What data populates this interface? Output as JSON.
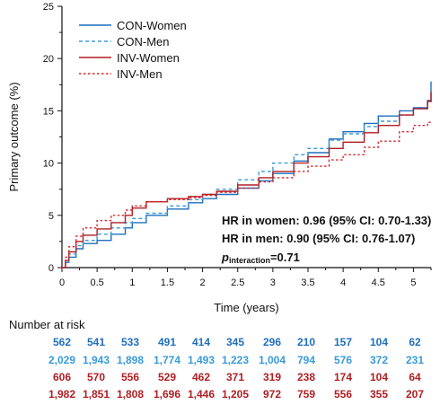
{
  "chart_data": {
    "type": "line",
    "title": "",
    "xlabel": "Time (years)",
    "ylabel": "Primary outcome (%)",
    "xlim": [
      0,
      5.25
    ],
    "ylim": [
      0,
      25
    ],
    "x_ticks": [
      0,
      0.5,
      1,
      1.5,
      2,
      2.5,
      3,
      3.5,
      4,
      4.5,
      5
    ],
    "x_tick_labels": [
      "0",
      "0.5",
      "1",
      "1.5",
      "2",
      "2.5",
      "3",
      "3.5",
      "4",
      "4.5",
      "5"
    ],
    "y_ticks": [
      0,
      5,
      10,
      15,
      20,
      25
    ],
    "y_tick_labels": [
      "0",
      "5",
      "10",
      "15",
      "20",
      "25"
    ],
    "grid": false,
    "legend_position": "top-left",
    "series": [
      {
        "name": "CON-Women",
        "color": "#1f6fbf",
        "dash": "solid",
        "x": [
          0,
          0.05,
          0.1,
          0.2,
          0.3,
          0.5,
          0.7,
          0.9,
          1.0,
          1.2,
          1.5,
          1.8,
          2.0,
          2.2,
          2.5,
          2.8,
          3.0,
          3.3,
          3.5,
          3.8,
          4.0,
          4.3,
          4.5,
          4.8,
          5.0,
          5.2,
          5.25
        ],
        "y": [
          0,
          0.5,
          1.0,
          1.8,
          2.3,
          2.6,
          3.2,
          3.8,
          4.3,
          5.0,
          5.6,
          6.2,
          6.6,
          7.0,
          7.6,
          8.3,
          9.0,
          10.2,
          11.0,
          12.3,
          13.0,
          13.8,
          14.5,
          15.0,
          15.3,
          16.0,
          17.8
        ]
      },
      {
        "name": "CON-Men",
        "color": "#3a9bd9",
        "dash": "dashed",
        "x": [
          0,
          0.05,
          0.1,
          0.2,
          0.3,
          0.5,
          0.7,
          0.9,
          1.0,
          1.2,
          1.5,
          1.8,
          2.0,
          2.2,
          2.5,
          2.8,
          3.0,
          3.3,
          3.5,
          3.8,
          4.0,
          4.3,
          4.5,
          4.8,
          5.0,
          5.2,
          5.25
        ],
        "y": [
          0,
          0.6,
          1.3,
          2.1,
          2.6,
          3.2,
          3.8,
          4.3,
          4.7,
          5.2,
          5.9,
          6.5,
          7.0,
          7.5,
          8.4,
          9.2,
          10.0,
          10.8,
          11.4,
          12.2,
          12.8,
          13.5,
          14.0,
          14.6,
          15.2,
          15.8,
          16.0
        ]
      },
      {
        "name": "INV-Women",
        "color": "#b01e23",
        "dash": "solid",
        "x": [
          0,
          0.05,
          0.1,
          0.2,
          0.3,
          0.5,
          0.7,
          0.9,
          1.0,
          1.2,
          1.5,
          1.8,
          2.0,
          2.2,
          2.5,
          2.8,
          3.0,
          3.3,
          3.5,
          3.8,
          4.0,
          4.3,
          4.5,
          4.8,
          5.0,
          5.2,
          5.25
        ],
        "y": [
          0,
          0.7,
          1.5,
          2.5,
          3.1,
          3.7,
          4.3,
          5.0,
          5.7,
          6.3,
          6.6,
          6.8,
          7.0,
          7.3,
          7.9,
          8.6,
          9.2,
          10.0,
          10.6,
          11.4,
          12.0,
          12.9,
          13.6,
          14.6,
          15.2,
          15.9,
          16.8
        ]
      },
      {
        "name": "INV-Men",
        "color": "#d6282d",
        "dash": "dotted",
        "x": [
          0,
          0.05,
          0.1,
          0.2,
          0.3,
          0.5,
          0.7,
          0.9,
          1.0,
          1.2,
          1.5,
          1.8,
          2.0,
          2.2,
          2.5,
          2.8,
          3.0,
          3.3,
          3.5,
          3.8,
          4.0,
          4.3,
          4.5,
          4.8,
          5.0,
          5.2,
          5.25
        ],
        "y": [
          0,
          1.0,
          2.0,
          3.0,
          3.8,
          4.5,
          5.0,
          5.5,
          5.9,
          6.3,
          6.5,
          6.7,
          6.9,
          7.2,
          7.6,
          8.2,
          8.6,
          9.2,
          9.7,
          10.3,
          10.8,
          11.5,
          12.1,
          13.0,
          13.6,
          13.9,
          13.9
        ]
      }
    ],
    "annotations": {
      "hr_women": "HR in women: 0.96 (95% CI: 0.70-1.33)",
      "hr_men": "HR in men: 0.90 (95% CI: 0.76-1.07)",
      "p_main": "p",
      "p_sub": "interaction",
      "p_value": "=0.71"
    },
    "risk_table": {
      "title": "Number at risk",
      "rows": [
        {
          "color": "#1f6fbf",
          "values": [
            "562",
            "541",
            "533",
            "491",
            "414",
            "345",
            "296",
            "210",
            "157",
            "104",
            "62"
          ]
        },
        {
          "color": "#3a9bd9",
          "values": [
            "2,029",
            "1,943",
            "1,898",
            "1,774",
            "1,493",
            "1,223",
            "1,004",
            "794",
            "576",
            "372",
            "231"
          ]
        },
        {
          "color": "#b01e23",
          "values": [
            "606",
            "570",
            "556",
            "529",
            "462",
            "371",
            "319",
            "238",
            "174",
            "104",
            "64"
          ]
        },
        {
          "color": "#b01e23",
          "values": [
            "1,982",
            "1,851",
            "1,808",
            "1,696",
            "1,446",
            "1,205",
            "972",
            "759",
            "556",
            "355",
            "207"
          ]
        }
      ]
    }
  }
}
